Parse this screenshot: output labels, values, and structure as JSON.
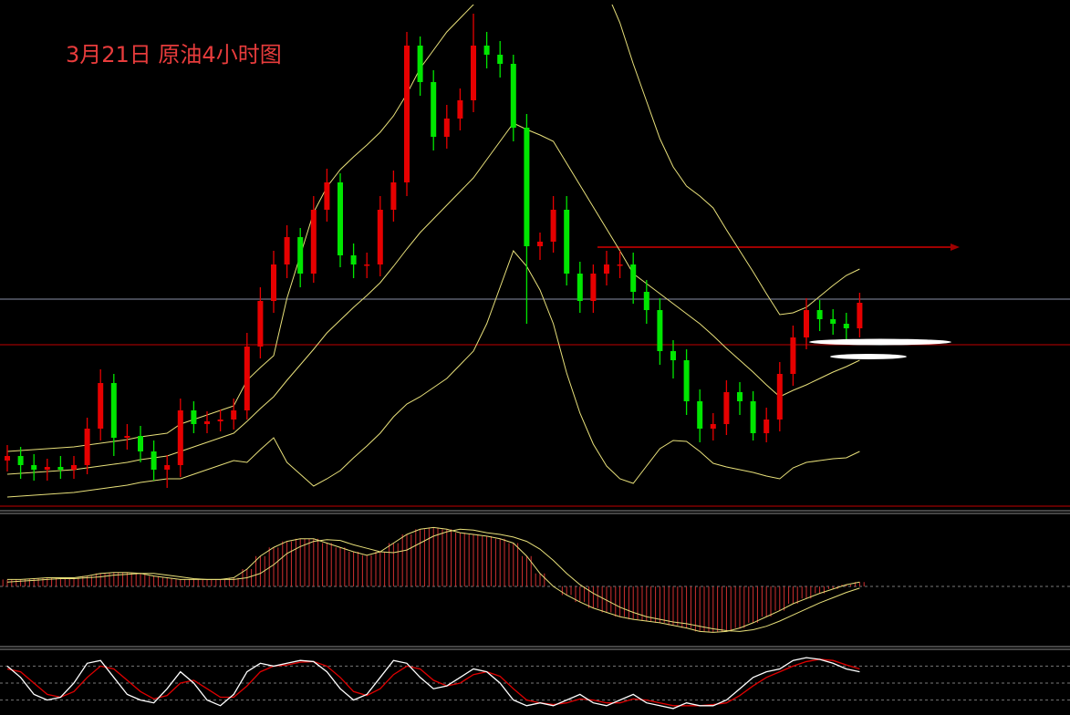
{
  "chart_data": {
    "type": "candlestick",
    "title": "3月21日  原油4小时图",
    "ylim": [
      0,
      550
    ],
    "open": [
      50,
      55,
      45,
      40,
      43,
      40,
      45,
      85,
      135,
      75,
      77,
      60,
      40,
      45,
      105,
      90,
      93,
      95,
      105,
      175,
      225,
      265,
      295,
      255,
      325,
      355,
      275,
      265,
      265,
      325,
      355,
      505,
      465,
      405,
      425,
      445,
      505,
      495,
      485,
      415,
      285,
      290,
      325,
      255,
      225,
      255,
      265,
      265,
      235,
      215,
      170,
      160,
      115,
      85,
      90,
      125,
      115,
      80,
      95,
      145,
      185,
      215,
      205,
      200,
      195
    ],
    "high": [
      67,
      65,
      57,
      52,
      55,
      55,
      97,
      150,
      145,
      90,
      88,
      72,
      56,
      118,
      115,
      104,
      106,
      118,
      190,
      240,
      280,
      308,
      305,
      340,
      370,
      365,
      288,
      278,
      340,
      368,
      520,
      515,
      478,
      440,
      458,
      540,
      520,
      510,
      495,
      430,
      300,
      340,
      340,
      268,
      265,
      280,
      280,
      278,
      248,
      228,
      182,
      172,
      128,
      102,
      138,
      136,
      126,
      108,
      158,
      198,
      228,
      226,
      216,
      212,
      234
    ],
    "low": [
      38,
      30,
      28,
      28,
      30,
      30,
      35,
      72,
      55,
      62,
      48,
      28,
      20,
      32,
      80,
      80,
      82,
      84,
      95,
      162,
      212,
      250,
      240,
      245,
      312,
      262,
      250,
      250,
      252,
      312,
      340,
      450,
      390,
      392,
      412,
      432,
      480,
      470,
      400,
      200,
      270,
      278,
      242,
      212,
      212,
      242,
      250,
      222,
      200,
      155,
      140,
      100,
      70,
      72,
      78,
      100,
      72,
      70,
      82,
      132,
      172,
      192,
      188,
      182,
      185
    ],
    "close": [
      55,
      45,
      40,
      43,
      40,
      45,
      85,
      135,
      75,
      77,
      60,
      40,
      45,
      105,
      90,
      93,
      95,
      105,
      175,
      225,
      265,
      295,
      255,
      325,
      355,
      275,
      265,
      265,
      325,
      355,
      505,
      465,
      405,
      425,
      445,
      505,
      495,
      485,
      415,
      285,
      290,
      325,
      255,
      225,
      255,
      265,
      265,
      235,
      215,
      170,
      160,
      115,
      85,
      90,
      125,
      115,
      80,
      95,
      145,
      185,
      215,
      205,
      200,
      195,
      223
    ],
    "up_color": "#e60000",
    "down_color": "#00e600",
    "bands": {
      "color": "#e8e07a",
      "upper": [
        60,
        61,
        62,
        63,
        64,
        65,
        67,
        69,
        71,
        73,
        76,
        78,
        80,
        90,
        95,
        100,
        105,
        110,
        138,
        152,
        165,
        228,
        275,
        322,
        350,
        369,
        383,
        396,
        410,
        428,
        452,
        480,
        500,
        520,
        535,
        550,
        560,
        560,
        560,
        563,
        577,
        600,
        606,
        602,
        588,
        564,
        530,
        485,
        444,
        403,
        372,
        351,
        340,
        327,
        303,
        280,
        257,
        233,
        210,
        212,
        218,
        230,
        242,
        253,
        260
      ],
      "middle": [
        35,
        36,
        37,
        38,
        39,
        40,
        42,
        44,
        46,
        48,
        51,
        53,
        55,
        60,
        65,
        70,
        75,
        80,
        93,
        107,
        120,
        138,
        155,
        172,
        190,
        204,
        218,
        231,
        245,
        263,
        282,
        300,
        315,
        330,
        345,
        360,
        380,
        400,
        420,
        413,
        407,
        400,
        376,
        352,
        328,
        304,
        280,
        255,
        244,
        233,
        222,
        211,
        200,
        187,
        173,
        160,
        147,
        133,
        120,
        127,
        133,
        140,
        147,
        153,
        160
      ],
      "lower": [
        10,
        11,
        12,
        13,
        14,
        15,
        17,
        19,
        21,
        23,
        26,
        28,
        30,
        30,
        35,
        40,
        45,
        50,
        48,
        62,
        75,
        48,
        35,
        22,
        30,
        39,
        53,
        66,
        80,
        98,
        112,
        120,
        130,
        140,
        155,
        170,
        200,
        240,
        280,
        263,
        237,
        200,
        146,
        102,
        68,
        44,
        30,
        25,
        44,
        63,
        72,
        71,
        60,
        47,
        43,
        40,
        37,
        33,
        30,
        42,
        48,
        50,
        52,
        53,
        60
      ]
    },
    "hlines": [
      {
        "value": 227,
        "color": "#8a8fa8"
      },
      {
        "value": 177,
        "color": "#c00000"
      }
    ],
    "arrow": {
      "value": 284,
      "color": "#a00000"
    },
    "macd": {
      "ylim": [
        -80,
        80
      ],
      "hist_color": "#d03030",
      "line_color": "#e8e07a",
      "hist": [
        8,
        8,
        9,
        10,
        10,
        10,
        12,
        15,
        16,
        16,
        15,
        12,
        10,
        8,
        8,
        8,
        8,
        10,
        20,
        35,
        45,
        52,
        55,
        55,
        50,
        45,
        40,
        36,
        40,
        50,
        60,
        66,
        68,
        66,
        62,
        60,
        58,
        55,
        50,
        35,
        15,
        0,
        -10,
        -18,
        -25,
        -30,
        -35,
        -38,
        -40,
        -42,
        -45,
        -48,
        -52,
        -53,
        -52,
        -48,
        -42,
        -35,
        -28,
        -20,
        -14,
        -8,
        -3,
        2,
        5
      ],
      "signal": [
        5,
        6,
        7,
        8,
        9,
        9,
        10,
        11,
        13,
        14,
        15,
        15,
        13,
        11,
        9,
        8,
        8,
        8,
        10,
        15,
        25,
        38,
        46,
        52,
        54,
        53,
        48,
        44,
        40,
        39,
        42,
        50,
        58,
        63,
        66,
        65,
        62,
        60,
        57,
        52,
        43,
        30,
        15,
        2,
        -8,
        -16,
        -24,
        -30,
        -35,
        -38,
        -41,
        -43,
        -46,
        -49,
        -51,
        -52,
        -50,
        -46,
        -40,
        -33,
        -26,
        -19,
        -13,
        -7,
        -2
      ]
    },
    "stoch": {
      "ylim": [
        0,
        100
      ],
      "levels": [
        20,
        50,
        80
      ],
      "k": [
        80,
        60,
        30,
        20,
        25,
        50,
        85,
        90,
        60,
        30,
        20,
        15,
        40,
        70,
        50,
        20,
        10,
        30,
        70,
        85,
        80,
        85,
        90,
        88,
        70,
        40,
        20,
        30,
        60,
        90,
        85,
        60,
        40,
        45,
        60,
        75,
        70,
        50,
        20,
        10,
        15,
        10,
        20,
        30,
        15,
        10,
        20,
        30,
        15,
        10,
        5,
        15,
        10,
        10,
        20,
        40,
        60,
        70,
        75,
        90,
        95,
        92,
        85,
        75,
        70
      ],
      "d": [
        75,
        70,
        50,
        30,
        25,
        35,
        60,
        80,
        75,
        55,
        35,
        22,
        28,
        50,
        55,
        40,
        25,
        25,
        45,
        70,
        80,
        82,
        87,
        88,
        80,
        60,
        35,
        28,
        40,
        65,
        80,
        75,
        55,
        45,
        50,
        65,
        70,
        62,
        40,
        20,
        15,
        12,
        15,
        22,
        20,
        15,
        15,
        22,
        20,
        15,
        10,
        10,
        10,
        12,
        15,
        28,
        45,
        60,
        70,
        80,
        88,
        92,
        90,
        82,
        75
      ],
      "k_color": "#ffffff",
      "d_color": "#e00000"
    }
  }
}
